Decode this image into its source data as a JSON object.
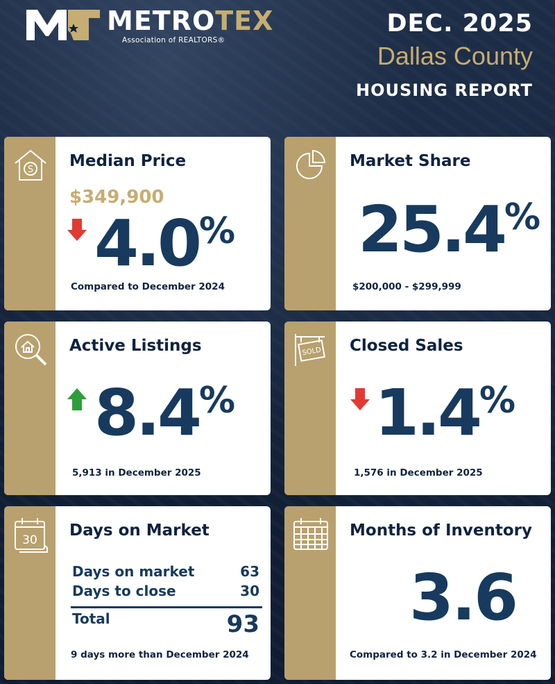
{
  "logo": {
    "word_a": "METRO",
    "word_b": "TEX",
    "subtitle": "Association of REALTORS®"
  },
  "header": {
    "date": "DEC. 2025",
    "county": "Dallas County",
    "report": "HOUSING REPORT"
  },
  "colors": {
    "navy": "#173a5e",
    "gold": "#c6ad72",
    "up": "#2e9e3a",
    "down": "#e23a33",
    "background": "#0f1d33"
  },
  "cards": {
    "median_price": {
      "icon": "house-dollar-icon",
      "title": "Median Price",
      "price": "$349,900",
      "direction": "down",
      "value": "4.0",
      "unit": "%",
      "note": "Compared to December 2024"
    },
    "market_share": {
      "icon": "pie-chart-icon",
      "title": "Market Share",
      "value": "25.4",
      "unit": "%",
      "note": "$200,000 - $299,999"
    },
    "active_listings": {
      "icon": "magnifier-house-icon",
      "title": "Active Listings",
      "direction": "up",
      "value": "8.4",
      "unit": "%",
      "note": "5,913 in December 2025"
    },
    "closed_sales": {
      "icon": "sold-sign-icon",
      "title": "Closed Sales",
      "direction": "down",
      "value": "1.4",
      "unit": "%",
      "note": "1,576 in December 2025"
    },
    "days_on_market": {
      "icon": "calendar-30-icon",
      "icon_text": "30",
      "title": "Days on Market",
      "rows": [
        {
          "label": "Days on market",
          "value": "63"
        },
        {
          "label": "Days to close",
          "value": "30"
        }
      ],
      "total_label": "Total",
      "total_value": "93",
      "note": "9 days more than December 2024"
    },
    "months_inventory": {
      "icon": "calendar-grid-icon",
      "title": "Months of Inventory",
      "value": "3.6",
      "note": "Compared to 3.2 in December 2024"
    }
  }
}
